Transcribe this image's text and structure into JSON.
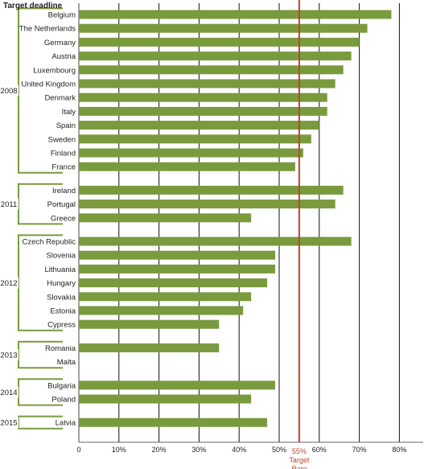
{
  "chart_data": {
    "type": "bar",
    "orientation": "horizontal",
    "title": "Target deadline",
    "xlim": [
      0,
      85
    ],
    "x_ticks": [
      "0",
      "10%",
      "20%",
      "30%",
      "40%",
      "50%",
      "60%",
      "70%",
      "80%"
    ],
    "grid": true,
    "colors": {
      "bar": "#7a9a3e",
      "target_line": "#b5482c",
      "bracket": "#7a9a3e"
    },
    "target": {
      "value": 55,
      "label_lines": [
        "55%",
        "Target",
        "Rate"
      ]
    },
    "groups": [
      {
        "name": "2008",
        "items": [
          {
            "country": "Belgium",
            "value": 78
          },
          {
            "country": "The Netherlands",
            "value": 72
          },
          {
            "country": "Germany",
            "value": 70
          },
          {
            "country": "Austria",
            "value": 68
          },
          {
            "country": "Luxembourg",
            "value": 66
          },
          {
            "country": "United Kingdom",
            "value": 64
          },
          {
            "country": "Denmark",
            "value": 62
          },
          {
            "country": "Italy",
            "value": 62
          },
          {
            "country": "Spain",
            "value": 60
          },
          {
            "country": "Sweden",
            "value": 58
          },
          {
            "country": "Finland",
            "value": 56
          },
          {
            "country": "France",
            "value": 54
          }
        ]
      },
      {
        "name": "2011",
        "items": [
          {
            "country": "Ireland",
            "value": 66
          },
          {
            "country": "Portugal",
            "value": 64
          },
          {
            "country": "Greece",
            "value": 43
          }
        ]
      },
      {
        "name": "2012",
        "items": [
          {
            "country": "Czech Republic",
            "value": 68
          },
          {
            "country": "Slovenia",
            "value": 49
          },
          {
            "country": "Lithuania",
            "value": 49
          },
          {
            "country": "Hungary",
            "value": 47
          },
          {
            "country": "Slovakia",
            "value": 43
          },
          {
            "country": "Estonia",
            "value": 41
          },
          {
            "country": "Cypress",
            "value": 35
          }
        ]
      },
      {
        "name": "2013",
        "items": [
          {
            "country": "Romania",
            "value": 35
          },
          {
            "country": "Malta",
            "value": 0
          }
        ]
      },
      {
        "name": "2014",
        "items": [
          {
            "country": "Bulgaria",
            "value": 49
          },
          {
            "country": "Poland",
            "value": 43
          }
        ]
      },
      {
        "name": "2015",
        "items": [
          {
            "country": "Latvia",
            "value": 47
          }
        ]
      }
    ]
  }
}
